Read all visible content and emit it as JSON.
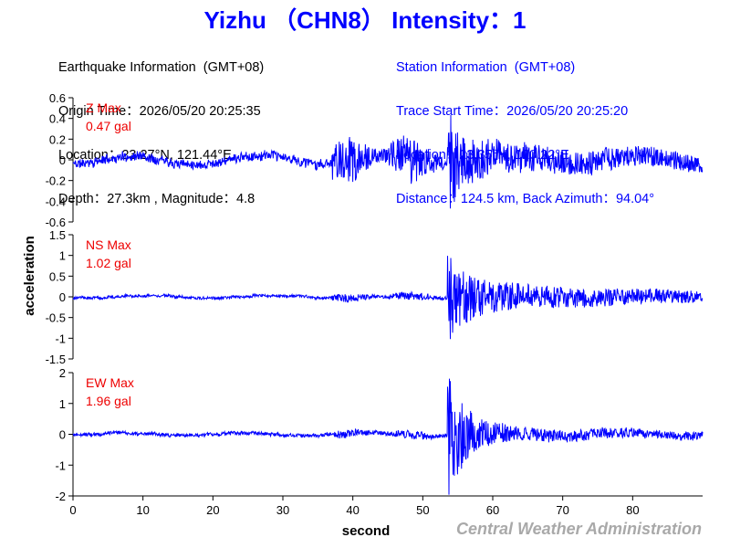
{
  "header": {
    "title": "Yizhu （CHN8） Intensity：1"
  },
  "earthquake_info": {
    "heading": "Earthquake Information  (GMT+08)",
    "origin_time": "Origin Time：2026/05/20 20:25:35",
    "location": "Location：23.27°N, 121.44°E",
    "depth_magnitude": "Depth：27.3km , Magnitude：4.8"
  },
  "station_info": {
    "heading": "Station Information  (GMT+08)",
    "trace_start_time": "Trace Start Time：2026/05/20 20:25:20",
    "location": "Location：23.35°N, 120.22°E",
    "distance_azimuth": "Distance：124.5 km, Back Azimuth：94.04°"
  },
  "footer": {
    "credit": "Central Weather Administration"
  },
  "colors": {
    "trace": "#0000ff",
    "max_label": "#ee0000",
    "credit": "#a9a9a9",
    "axes": "#000000"
  },
  "chart_data": {
    "type": "line",
    "xlabel": "second",
    "ylabel": "acceleration",
    "xlim": [
      0,
      90
    ],
    "xticks": [
      0,
      10,
      20,
      30,
      40,
      50,
      60,
      70,
      80
    ],
    "duration_s": 90,
    "p_arrival_s": 37,
    "s_arrival_s": 53.5,
    "grid": false,
    "panels": [
      {
        "channel": "Z",
        "max_label": "Z Max",
        "max_value": "0.47 gal",
        "peak": 0.47,
        "ylim": [
          -0.6,
          0.6
        ],
        "yticks": [
          -0.6,
          -0.4,
          -0.2,
          0,
          0.2,
          0.4,
          0.6
        ],
        "ytick_labels": [
          "-0.6",
          "-0.4",
          "-0.2",
          "0",
          "0.2",
          "0.4",
          "0.6"
        ],
        "noise": 0.03,
        "p_amp": 0.14,
        "s_amp": 0.22,
        "coda_amp": 0.11,
        "seed": 11
      },
      {
        "channel": "NS",
        "max_label": "NS Max",
        "max_value": "1.02 gal",
        "peak": 1.02,
        "ylim": [
          -1.5,
          1.5
        ],
        "yticks": [
          -1.5,
          -1,
          -0.5,
          0,
          0.5,
          1,
          1.5
        ],
        "ytick_labels": [
          "-1.5",
          "-1",
          "-0.5",
          "0",
          "0.5",
          "1",
          "1.5"
        ],
        "noise": 0.025,
        "p_amp": 0.05,
        "s_amp": 0.55,
        "coda_amp": 0.3,
        "seed": 23
      },
      {
        "channel": "EW",
        "max_label": "EW Max",
        "max_value": "1.96 gal",
        "peak": 1.96,
        "ylim": [
          -2,
          2
        ],
        "yticks": [
          -2,
          -1,
          0,
          1,
          2
        ],
        "ytick_labels": [
          "-2",
          "-1",
          "0",
          "1",
          "2"
        ],
        "noise": 0.025,
        "p_amp": 0.04,
        "s_amp": 0.95,
        "coda_amp": 0.12,
        "seed": 37
      }
    ]
  }
}
